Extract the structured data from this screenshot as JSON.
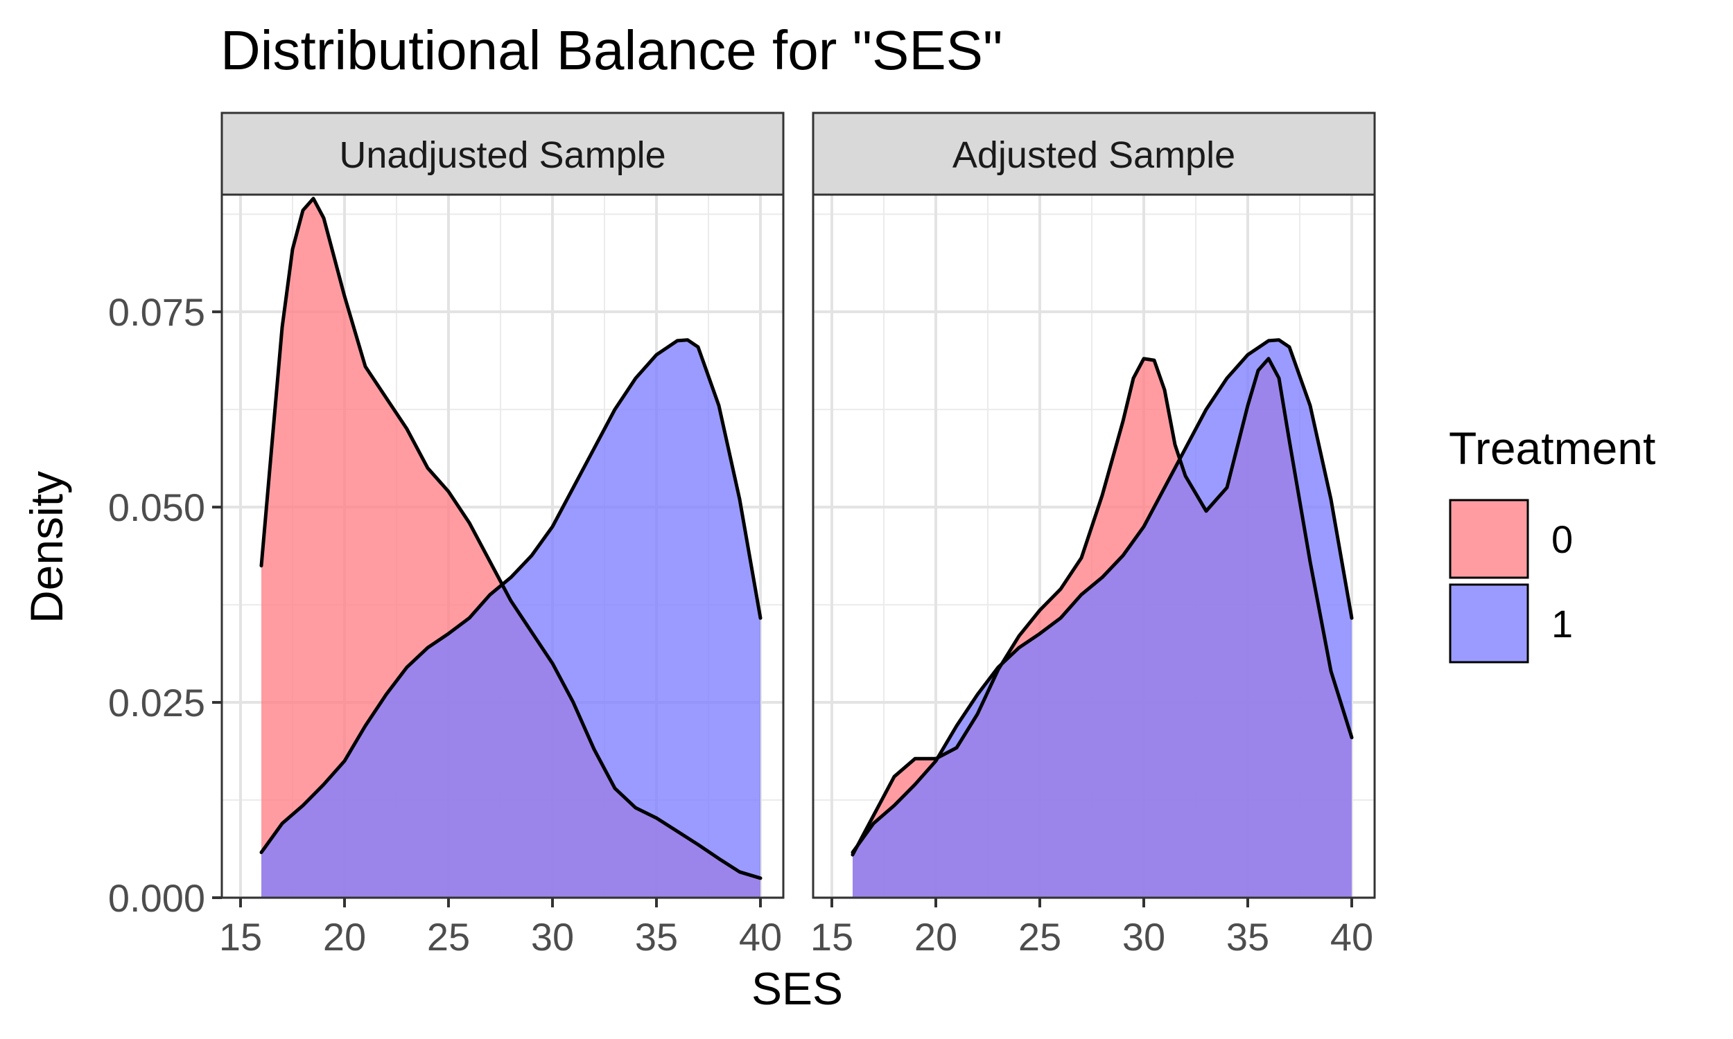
{
  "chart_data": {
    "type": "area",
    "title": "Distributional Balance for \"SES\"",
    "xlabel": "SES",
    "ylabel": "Density",
    "xlim": [
      15,
      40
    ],
    "ylim": [
      0,
      0.09
    ],
    "x_ticks": [
      15,
      20,
      25,
      30,
      35,
      40
    ],
    "x_tick_labels": [
      "15",
      "20",
      "25",
      "30",
      "35",
      "40"
    ],
    "y_ticks": [
      0,
      0.025,
      0.05,
      0.075
    ],
    "y_tick_labels": [
      "0.000",
      "0.025",
      "0.050",
      "0.075"
    ],
    "grid": true,
    "legend": {
      "title": "Treatment",
      "placement": "right",
      "entries": [
        {
          "label": "0",
          "color": "#ff8088"
        },
        {
          "label": "1",
          "color": "#7f7fff"
        }
      ]
    },
    "panels": [
      {
        "label": "Unadjusted Sample",
        "series": [
          {
            "name": "0",
            "color": "#ff8088",
            "x": [
              16,
              17,
              17.5,
              18,
              18.5,
              19,
              19.5,
              20,
              21,
              22,
              23,
              24,
              25,
              26,
              27,
              28,
              29,
              30,
              31,
              32,
              33,
              34,
              35,
              36,
              37,
              38,
              39,
              40
            ],
            "y": [
              0.0425,
              0.073,
              0.083,
              0.088,
              0.0895,
              0.087,
              0.082,
              0.077,
              0.068,
              0.064,
              0.06,
              0.055,
              0.052,
              0.048,
              0.043,
              0.038,
              0.034,
              0.03,
              0.025,
              0.019,
              0.014,
              0.0115,
              0.0102,
              0.0085,
              0.0068,
              0.005,
              0.0033,
              0.0025
            ]
          },
          {
            "name": "1",
            "color": "#7f7fff",
            "x": [
              16,
              17,
              18,
              19,
              20,
              21,
              22,
              23,
              24,
              25,
              26,
              27,
              28,
              29,
              30,
              31,
              32,
              33,
              34,
              35,
              36,
              36.5,
              37,
              38,
              39,
              40
            ],
            "y": [
              0.0058,
              0.0095,
              0.0118,
              0.0145,
              0.0175,
              0.022,
              0.026,
              0.0295,
              0.032,
              0.0338,
              0.0358,
              0.0388,
              0.041,
              0.0438,
              0.0475,
              0.0525,
              0.0575,
              0.0625,
              0.0665,
              0.0695,
              0.0713,
              0.0714,
              0.0705,
              0.063,
              0.051,
              0.0358
            ]
          }
        ]
      },
      {
        "label": "Adjusted Sample",
        "series": [
          {
            "name": "0",
            "color": "#ff8088",
            "x": [
              16,
              17,
              18,
              19,
              20,
              21,
              22,
              23,
              24,
              25,
              26,
              27,
              28,
              29,
              29.5,
              30,
              30.5,
              31,
              31.5,
              32,
              33,
              34,
              35,
              35.5,
              36,
              36.5,
              37,
              38,
              39,
              40
            ],
            "y": [
              0.0055,
              0.0105,
              0.0155,
              0.0178,
              0.0178,
              0.0192,
              0.0235,
              0.0292,
              0.0335,
              0.0368,
              0.0395,
              0.0435,
              0.0515,
              0.061,
              0.0665,
              0.069,
              0.0688,
              0.065,
              0.058,
              0.054,
              0.0495,
              0.0525,
              0.063,
              0.0675,
              0.069,
              0.0665,
              0.0585,
              0.043,
              0.029,
              0.0205
            ]
          },
          {
            "name": "1",
            "color": "#7f7fff",
            "x": [
              16,
              17,
              18,
              19,
              20,
              21,
              22,
              23,
              24,
              25,
              26,
              27,
              28,
              29,
              30,
              31,
              32,
              33,
              34,
              35,
              36,
              36.5,
              37,
              38,
              39,
              40
            ],
            "y": [
              0.0058,
              0.0095,
              0.0118,
              0.0145,
              0.0175,
              0.022,
              0.026,
              0.0295,
              0.032,
              0.0338,
              0.0358,
              0.0388,
              0.041,
              0.0438,
              0.0475,
              0.0525,
              0.0575,
              0.0625,
              0.0665,
              0.0695,
              0.0713,
              0.0714,
              0.0705,
              0.063,
              0.051,
              0.0358
            ]
          }
        ]
      }
    ]
  }
}
